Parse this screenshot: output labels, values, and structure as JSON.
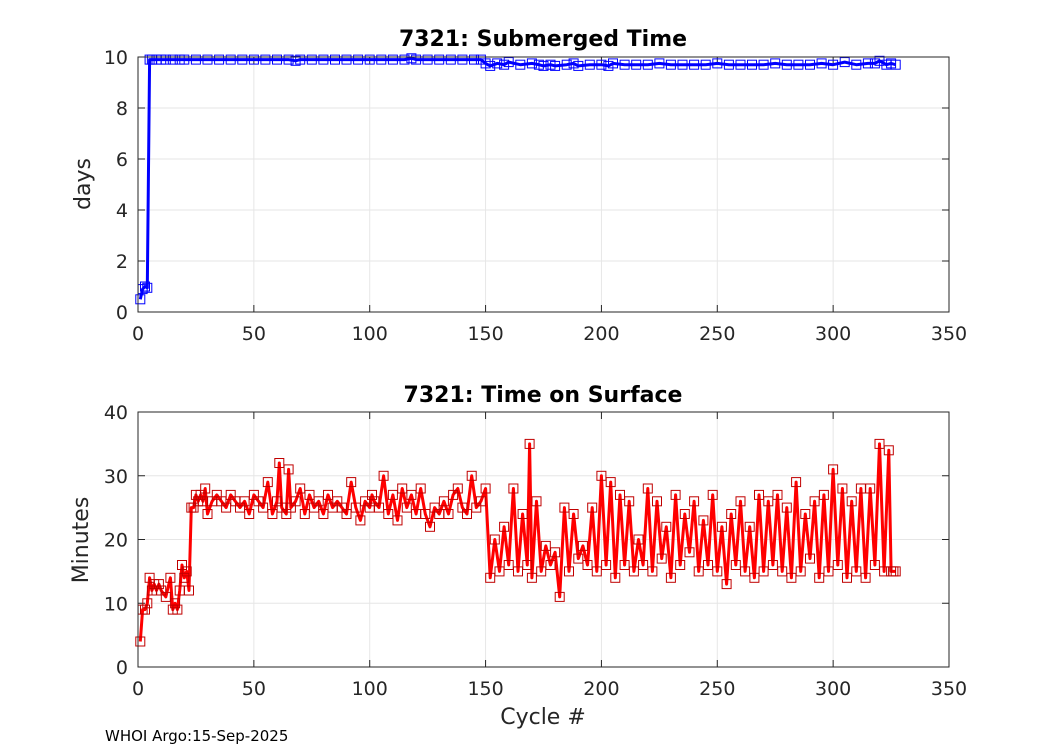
{
  "footer": "WHOI Argo:15-Sep-2025",
  "colors": {
    "submerged": "#0000ff",
    "surface": "#ff0000",
    "marker_surface": "#c00000"
  },
  "chart_data": [
    {
      "type": "line",
      "title": "7321: Submerged Time",
      "xlabel": "",
      "ylabel": "days",
      "xlim": [
        0,
        350
      ],
      "ylim": [
        0,
        10
      ],
      "xticks": [
        0,
        50,
        100,
        150,
        200,
        250,
        300,
        350
      ],
      "yticks": [
        0,
        2,
        4,
        6,
        8,
        10
      ],
      "grid": true,
      "marker": "square",
      "series": [
        {
          "name": "Submerged Time",
          "x": [
            1,
            2,
            3,
            4,
            5,
            6,
            8,
            10,
            12,
            15,
            18,
            20,
            25,
            30,
            35,
            40,
            45,
            50,
            55,
            60,
            65,
            68,
            70,
            75,
            80,
            85,
            90,
            95,
            100,
            105,
            110,
            115,
            118,
            120,
            125,
            130,
            135,
            140,
            145,
            148,
            150,
            152,
            155,
            158,
            160,
            165,
            170,
            173,
            175,
            178,
            180,
            185,
            188,
            190,
            195,
            200,
            203,
            205,
            210,
            215,
            220,
            225,
            230,
            235,
            240,
            245,
            250,
            255,
            260,
            265,
            270,
            275,
            280,
            285,
            290,
            295,
            300,
            305,
            310,
            315,
            318,
            320,
            323,
            325,
            327
          ],
          "values": [
            0.5,
            0.9,
            1.0,
            0.95,
            9.9,
            9.9,
            9.9,
            9.9,
            9.9,
            9.9,
            9.9,
            9.9,
            9.9,
            9.9,
            9.9,
            9.9,
            9.9,
            9.9,
            9.9,
            9.9,
            9.9,
            9.85,
            9.9,
            9.9,
            9.9,
            9.9,
            9.9,
            9.9,
            9.9,
            9.9,
            9.9,
            9.9,
            9.95,
            9.9,
            9.9,
            9.9,
            9.9,
            9.9,
            9.9,
            9.9,
            9.75,
            9.65,
            9.75,
            9.7,
            9.8,
            9.7,
            9.75,
            9.7,
            9.65,
            9.7,
            9.65,
            9.7,
            9.75,
            9.65,
            9.7,
            9.7,
            9.65,
            9.75,
            9.7,
            9.7,
            9.7,
            9.75,
            9.7,
            9.7,
            9.7,
            9.7,
            9.75,
            9.7,
            9.7,
            9.7,
            9.7,
            9.75,
            9.7,
            9.7,
            9.7,
            9.75,
            9.7,
            9.8,
            9.7,
            9.75,
            9.75,
            9.85,
            9.7,
            9.75,
            9.7
          ]
        }
      ]
    },
    {
      "type": "line",
      "title": "7321: Time on Surface",
      "xlabel": "Cycle #",
      "ylabel": "Minutes",
      "xlim": [
        0,
        350
      ],
      "ylim": [
        0,
        40
      ],
      "xticks": [
        0,
        50,
        100,
        150,
        200,
        250,
        300,
        350
      ],
      "yticks": [
        0,
        10,
        20,
        30,
        40
      ],
      "grid": true,
      "marker": "square",
      "series": [
        {
          "name": "Time on Surface",
          "x": [
            1,
            2,
            3,
            4,
            5,
            6,
            7,
            8,
            9,
            10,
            12,
            14,
            15,
            16,
            17,
            18,
            19,
            20,
            21,
            22,
            23,
            24,
            25,
            26,
            27,
            28,
            29,
            30,
            32,
            34,
            36,
            38,
            40,
            42,
            44,
            46,
            48,
            50,
            52,
            54,
            56,
            58,
            60,
            61,
            62,
            64,
            65,
            66,
            68,
            70,
            72,
            74,
            76,
            78,
            80,
            82,
            84,
            86,
            88,
            90,
            92,
            94,
            96,
            98,
            100,
            101,
            102,
            104,
            106,
            108,
            110,
            112,
            114,
            116,
            118,
            120,
            122,
            124,
            126,
            128,
            130,
            132,
            134,
            136,
            138,
            140,
            142,
            144,
            146,
            148,
            150,
            152,
            154,
            156,
            158,
            160,
            162,
            164,
            166,
            168,
            169,
            170,
            172,
            174,
            176,
            178,
            180,
            182,
            184,
            186,
            188,
            190,
            192,
            194,
            196,
            198,
            200,
            202,
            204,
            206,
            208,
            210,
            212,
            214,
            216,
            218,
            220,
            222,
            224,
            226,
            228,
            230,
            232,
            234,
            236,
            238,
            240,
            242,
            244,
            246,
            248,
            250,
            252,
            254,
            256,
            258,
            260,
            262,
            264,
            266,
            268,
            270,
            272,
            274,
            276,
            278,
            280,
            282,
            284,
            286,
            288,
            290,
            292,
            294,
            296,
            298,
            300,
            302,
            304,
            306,
            308,
            310,
            312,
            314,
            316,
            318,
            320,
            322,
            324,
            325,
            326,
            327
          ],
          "values": [
            4,
            9,
            9,
            10,
            14,
            12,
            13,
            12,
            13,
            12,
            11,
            14,
            9,
            10,
            9,
            12,
            16,
            14,
            15,
            12,
            25,
            25,
            27,
            26,
            27,
            26,
            28,
            24,
            26,
            27,
            26,
            25,
            27,
            26,
            25,
            26,
            24,
            27,
            26,
            25,
            29,
            24,
            26,
            32,
            25,
            24,
            31,
            25,
            26,
            28,
            24,
            27,
            25,
            26,
            24,
            27,
            25,
            26,
            25,
            24,
            29,
            25,
            23,
            26,
            25,
            27,
            26,
            25,
            30,
            24,
            27,
            23,
            28,
            25,
            27,
            24,
            28,
            24,
            22,
            25,
            24,
            26,
            24,
            27,
            28,
            25,
            24,
            30,
            25,
            26,
            28,
            14,
            20,
            15,
            22,
            16,
            28,
            15,
            24,
            16,
            35,
            14,
            26,
            15,
            19,
            16,
            18,
            11,
            25,
            15,
            24,
            17,
            19,
            16,
            25,
            15,
            30,
            16,
            29,
            14,
            27,
            16,
            26,
            15,
            20,
            16,
            28,
            15,
            26,
            17,
            22,
            14,
            27,
            16,
            24,
            18,
            26,
            15,
            23,
            16,
            27,
            15,
            22,
            13,
            24,
            16,
            26,
            15,
            22,
            14,
            27,
            15,
            26,
            16,
            27,
            15,
            25,
            14,
            29,
            15,
            24,
            17,
            26,
            14,
            27,
            15,
            31,
            16,
            28,
            14,
            26,
            15,
            28,
            14,
            28,
            16,
            35,
            15,
            34,
            15,
            15,
            15
          ]
        }
      ]
    }
  ]
}
